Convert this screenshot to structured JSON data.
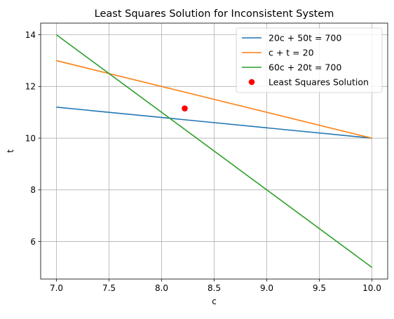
{
  "chart_data": {
    "type": "line",
    "title": "Least Squares Solution for Inconsistent System",
    "xlabel": "c",
    "ylabel": "t",
    "xlim": [
      6.85,
      10.15
    ],
    "ylim": [
      4.55,
      14.45
    ],
    "xticks": [
      7.0,
      7.5,
      8.0,
      8.5,
      9.0,
      9.5,
      10.0
    ],
    "xtick_labels": [
      "7.0",
      "7.5",
      "8.0",
      "8.5",
      "9.0",
      "9.5",
      "10.0"
    ],
    "yticks": [
      6,
      8,
      10,
      12,
      14
    ],
    "ytick_labels": [
      "6",
      "8",
      "10",
      "12",
      "14"
    ],
    "grid": true,
    "legend_position": "top-right",
    "series": [
      {
        "name": "20c + 50t = 700",
        "color": "#1f77b4",
        "x": [
          7.0,
          10.0
        ],
        "y": [
          11.2,
          10.0
        ]
      },
      {
        "name": "c + t = 20",
        "color": "#ff7f0e",
        "x": [
          7.0,
          10.0
        ],
        "y": [
          13.0,
          10.0
        ]
      },
      {
        "name": "60c + 20t = 700",
        "color": "#2ca02c",
        "x": [
          7.0,
          10.0
        ],
        "y": [
          14.0,
          5.0
        ]
      }
    ],
    "points": [
      {
        "name": "Least Squares Solution",
        "color": "#ff0000",
        "x": 8.22,
        "y": 11.15
      }
    ]
  }
}
